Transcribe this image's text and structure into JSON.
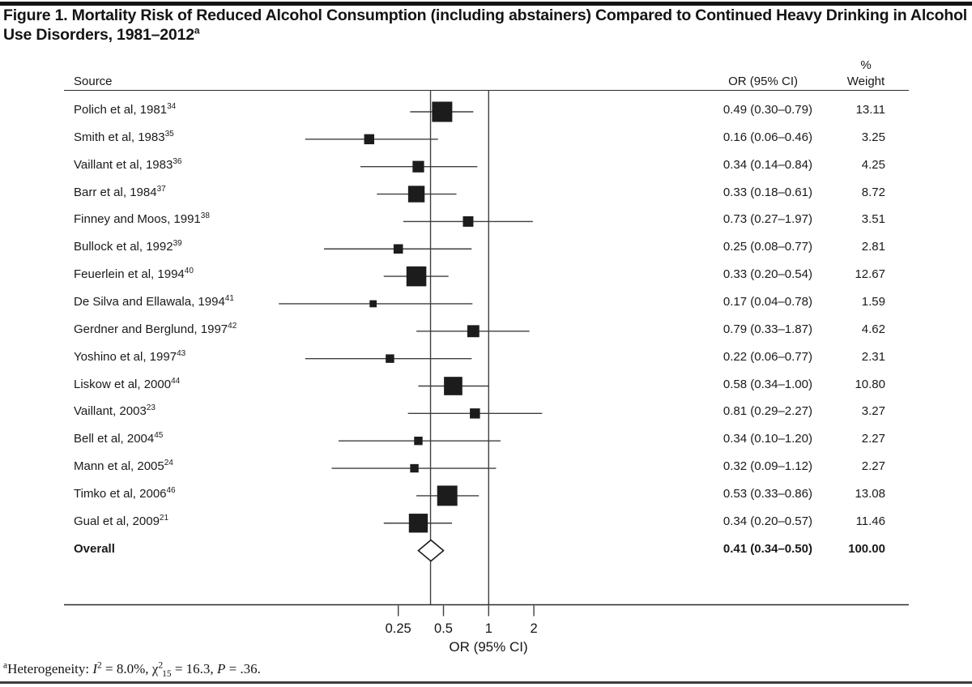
{
  "title": {
    "text": "Figure 1. Mortality Risk of Reduced Alcohol Consumption (including abstainers) Compared to Continued Heavy Drinking in Alcohol Use Disorders, 1981–2012",
    "superscript": "a"
  },
  "columns": {
    "source": "Source",
    "or": "OR (95% CI)",
    "weight_line1": "%",
    "weight_line2": "Weight"
  },
  "axis": {
    "label": "OR (95% CI)",
    "scale": "log2",
    "ticks": [
      0.25,
      0.5,
      1,
      2
    ],
    "tick_labels": [
      "0.25",
      "0.5",
      "1",
      "2"
    ],
    "reference_line_or": 1,
    "overall_line_or": 0.41
  },
  "chart_data": {
    "type": "forest",
    "x_scale": "log2",
    "studies": [
      {
        "source": "Polich et al, 1981",
        "ref": "34",
        "or": 0.49,
        "ci_low": 0.3,
        "ci_high": 0.79,
        "or_text": "0.49 (0.30–0.79)",
        "weight": 13.11,
        "weight_text": "13.11"
      },
      {
        "source": "Smith et al, 1983",
        "ref": "35",
        "or": 0.16,
        "ci_low": 0.06,
        "ci_high": 0.46,
        "or_text": "0.16 (0.06–0.46)",
        "weight": 3.25,
        "weight_text": "3.25"
      },
      {
        "source": "Vaillant et al, 1983",
        "ref": "36",
        "or": 0.34,
        "ci_low": 0.14,
        "ci_high": 0.84,
        "or_text": "0.34 (0.14–0.84)",
        "weight": 4.25,
        "weight_text": "4.25"
      },
      {
        "source": "Barr et al, 1984",
        "ref": "37",
        "or": 0.33,
        "ci_low": 0.18,
        "ci_high": 0.61,
        "or_text": "0.33 (0.18–0.61)",
        "weight": 8.72,
        "weight_text": "8.72"
      },
      {
        "source": "Finney and Moos, 1991",
        "ref": "38",
        "or": 0.73,
        "ci_low": 0.27,
        "ci_high": 1.97,
        "or_text": "0.73 (0.27–1.97)",
        "weight": 3.51,
        "weight_text": "3.51"
      },
      {
        "source": "Bullock et al, 1992",
        "ref": "39",
        "or": 0.25,
        "ci_low": 0.08,
        "ci_high": 0.77,
        "or_text": "0.25 (0.08–0.77)",
        "weight": 2.81,
        "weight_text": "2.81"
      },
      {
        "source": "Feuerlein et al, 1994",
        "ref": "40",
        "or": 0.33,
        "ci_low": 0.2,
        "ci_high": 0.54,
        "or_text": "0.33 (0.20–0.54)",
        "weight": 12.67,
        "weight_text": "12.67"
      },
      {
        "source": "De Silva and Ellawala, 1994",
        "ref": "41",
        "or": 0.17,
        "ci_low": 0.04,
        "ci_high": 0.78,
        "or_text": "0.17 (0.04–0.78)",
        "weight": 1.59,
        "weight_text": "1.59"
      },
      {
        "source": "Gerdner and Berglund, 1997",
        "ref": "42",
        "or": 0.79,
        "ci_low": 0.33,
        "ci_high": 1.87,
        "or_text": "0.79 (0.33–1.87)",
        "weight": 4.62,
        "weight_text": "4.62"
      },
      {
        "source": "Yoshino et al, 1997",
        "ref": "43",
        "or": 0.22,
        "ci_low": 0.06,
        "ci_high": 0.77,
        "or_text": "0.22 (0.06–0.77)",
        "weight": 2.31,
        "weight_text": "2.31"
      },
      {
        "source": "Liskow et al, 2000",
        "ref": "44",
        "or": 0.58,
        "ci_low": 0.34,
        "ci_high": 1.0,
        "or_text": "0.58 (0.34–1.00)",
        "weight": 10.8,
        "weight_text": "10.80"
      },
      {
        "source": "Vaillant, 2003",
        "ref": "23",
        "or": 0.81,
        "ci_low": 0.29,
        "ci_high": 2.27,
        "or_text": "0.81 (0.29–2.27)",
        "weight": 3.27,
        "weight_text": "3.27"
      },
      {
        "source": "Bell et al, 2004",
        "ref": "45",
        "or": 0.34,
        "ci_low": 0.1,
        "ci_high": 1.2,
        "or_text": "0.34 (0.10–1.20)",
        "weight": 2.27,
        "weight_text": "2.27"
      },
      {
        "source": "Mann et al, 2005",
        "ref": "24",
        "or": 0.32,
        "ci_low": 0.09,
        "ci_high": 1.12,
        "or_text": "0.32 (0.09–1.12)",
        "weight": 2.27,
        "weight_text": "2.27"
      },
      {
        "source": "Timko et al, 2006",
        "ref": "46",
        "or": 0.53,
        "ci_low": 0.33,
        "ci_high": 0.86,
        "or_text": "0.53 (0.33–0.86)",
        "weight": 13.08,
        "weight_text": "13.08"
      },
      {
        "source": "Gual et al, 2009",
        "ref": "21",
        "or": 0.34,
        "ci_low": 0.2,
        "ci_high": 0.57,
        "or_text": "0.34 (0.20–0.57)",
        "weight": 11.46,
        "weight_text": "11.46"
      }
    ],
    "overall": {
      "label": "Overall",
      "or": 0.41,
      "ci_low": 0.34,
      "ci_high": 0.5,
      "or_text": "0.41 (0.34–0.50)",
      "weight_text": "100.00"
    }
  },
  "footnote": {
    "sup": "a",
    "t1": "Heterogeneity: ",
    "i": "I",
    "i_sup": "2",
    "t2": " = 8.0%, ",
    "chi": "χ",
    "chi_sup": "2",
    "chi_sub": "15",
    "t3": " = 16.3, ",
    "p": "P",
    "t4": " = .36."
  },
  "colors": {
    "ink": "#161616",
    "square": "#1c1c1c",
    "line": "#3f3f3f",
    "rule": "#2b2b2b",
    "diamond_fill": "#ffffff"
  }
}
